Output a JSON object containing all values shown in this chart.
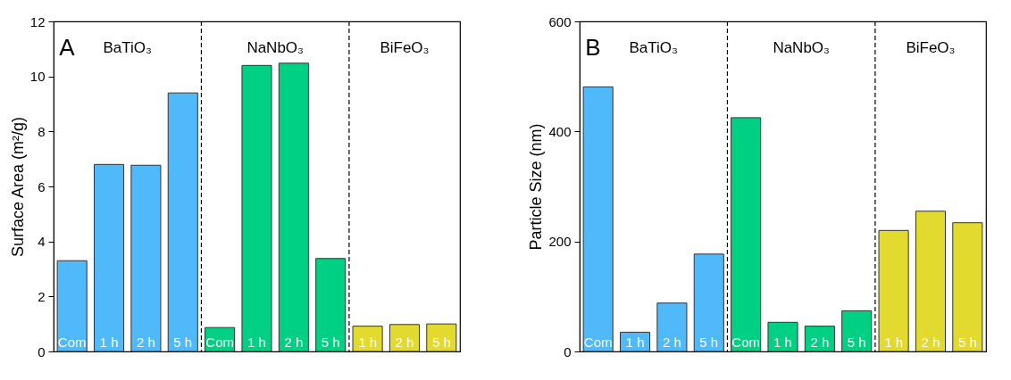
{
  "chart_data": [
    {
      "type": "bar",
      "ylabel": "Surface Area (m²/g)",
      "categories": [
        "Com",
        "1 h",
        "2 h",
        "5 h",
        "Com",
        "1 h",
        "2 h",
        "5 h",
        "1 h",
        "2 h",
        "5 h"
      ],
      "values": [
        3.3,
        6.8,
        6.77,
        9.4,
        0.87,
        10.4,
        10.48,
        3.38,
        0.92,
        0.98,
        1.0
      ],
      "colors": [
        "#4fb9fa",
        "#4fb9fa",
        "#4fb9fa",
        "#4fb9fa",
        "#00d084",
        "#00d084",
        "#00d084",
        "#00d084",
        "#e3da2f",
        "#e3da2f",
        "#e3da2f"
      ],
      "ylim": [
        0,
        12
      ],
      "yticks": [
        0,
        2,
        4,
        6,
        8,
        10,
        12
      ],
      "grid": false,
      "annotations": [
        "A",
        "BaTiO₃",
        "NaNbO₃",
        "BiFeO₃"
      ]
    },
    {
      "type": "bar",
      "ylabel": "Particle Size (nm)",
      "categories": [
        "Com",
        "1 h",
        "2 h",
        "5 h",
        "Com",
        "1 h",
        "2 h",
        "5 h",
        "1 h",
        "2 h",
        "5 h"
      ],
      "values": [
        481,
        35,
        88,
        177,
        425,
        53,
        46,
        74,
        220,
        255,
        234
      ],
      "colors": [
        "#4fb9fa",
        "#4fb9fa",
        "#4fb9fa",
        "#4fb9fa",
        "#00d084",
        "#00d084",
        "#00d084",
        "#00d084",
        "#e3da2f",
        "#e3da2f",
        "#e3da2f"
      ],
      "ylim": [
        0,
        600
      ],
      "yticks": [
        0,
        200,
        400,
        600
      ],
      "grid": false,
      "annotations": [
        "B",
        "BaTiO₃",
        "NaNbO₃",
        "BiFeO₃"
      ]
    }
  ]
}
